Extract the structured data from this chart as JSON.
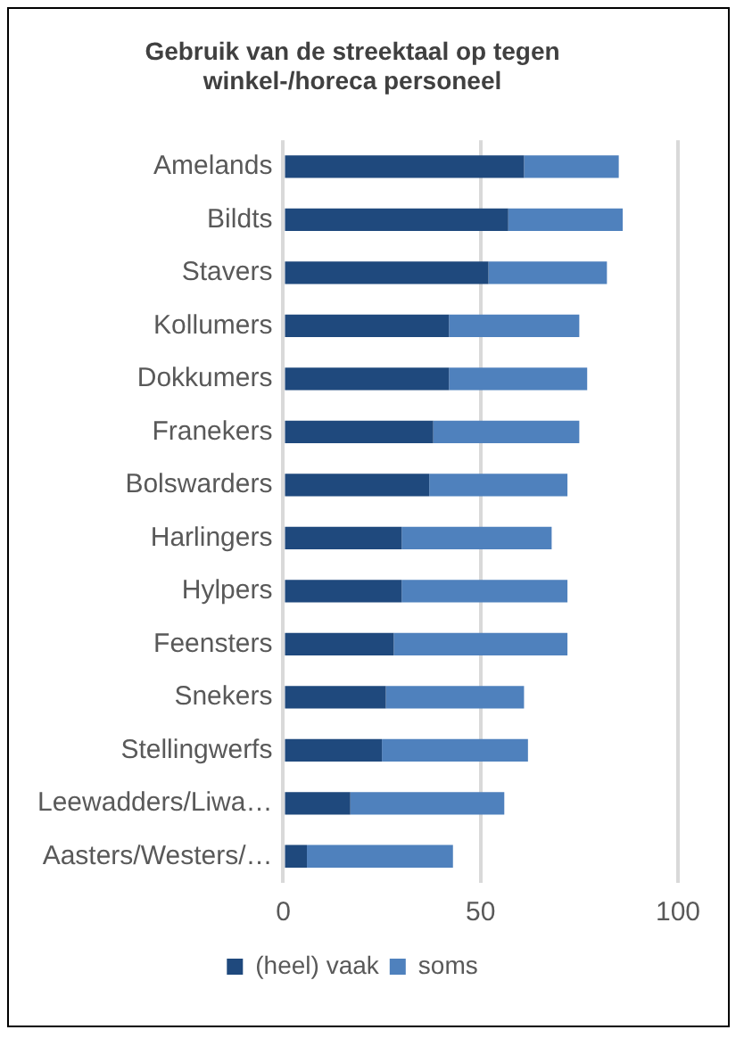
{
  "chart_data": {
    "type": "bar",
    "orientation": "horizontal",
    "stacked": true,
    "title": "Gebruik van de streektaal op tegen winkel-/horeca personeel",
    "categories": [
      "Amelands",
      "Bildts",
      "Stavers",
      "Kollumers",
      "Dokkumers",
      "Franekers",
      "Bolswarders",
      "Harlingers",
      "Hylpers",
      "Feensters",
      "Snekers",
      "Stellingwerfs",
      "Leewadders/Liwa…",
      "Aasters/Westers/…"
    ],
    "series": [
      {
        "name": "(heel) vaak",
        "color": "#1f497d",
        "values": [
          61,
          57,
          52,
          42,
          42,
          38,
          37,
          30,
          30,
          28,
          26,
          25,
          17,
          6
        ]
      },
      {
        "name": "soms",
        "color": "#4f81bd",
        "values": [
          24,
          29,
          30,
          33,
          35,
          37,
          35,
          38,
          42,
          44,
          35,
          37,
          39,
          37
        ]
      }
    ],
    "xlim": [
      0,
      100
    ],
    "xticks": [
      0,
      50,
      100
    ],
    "grid": "x",
    "legend": "bottom"
  }
}
